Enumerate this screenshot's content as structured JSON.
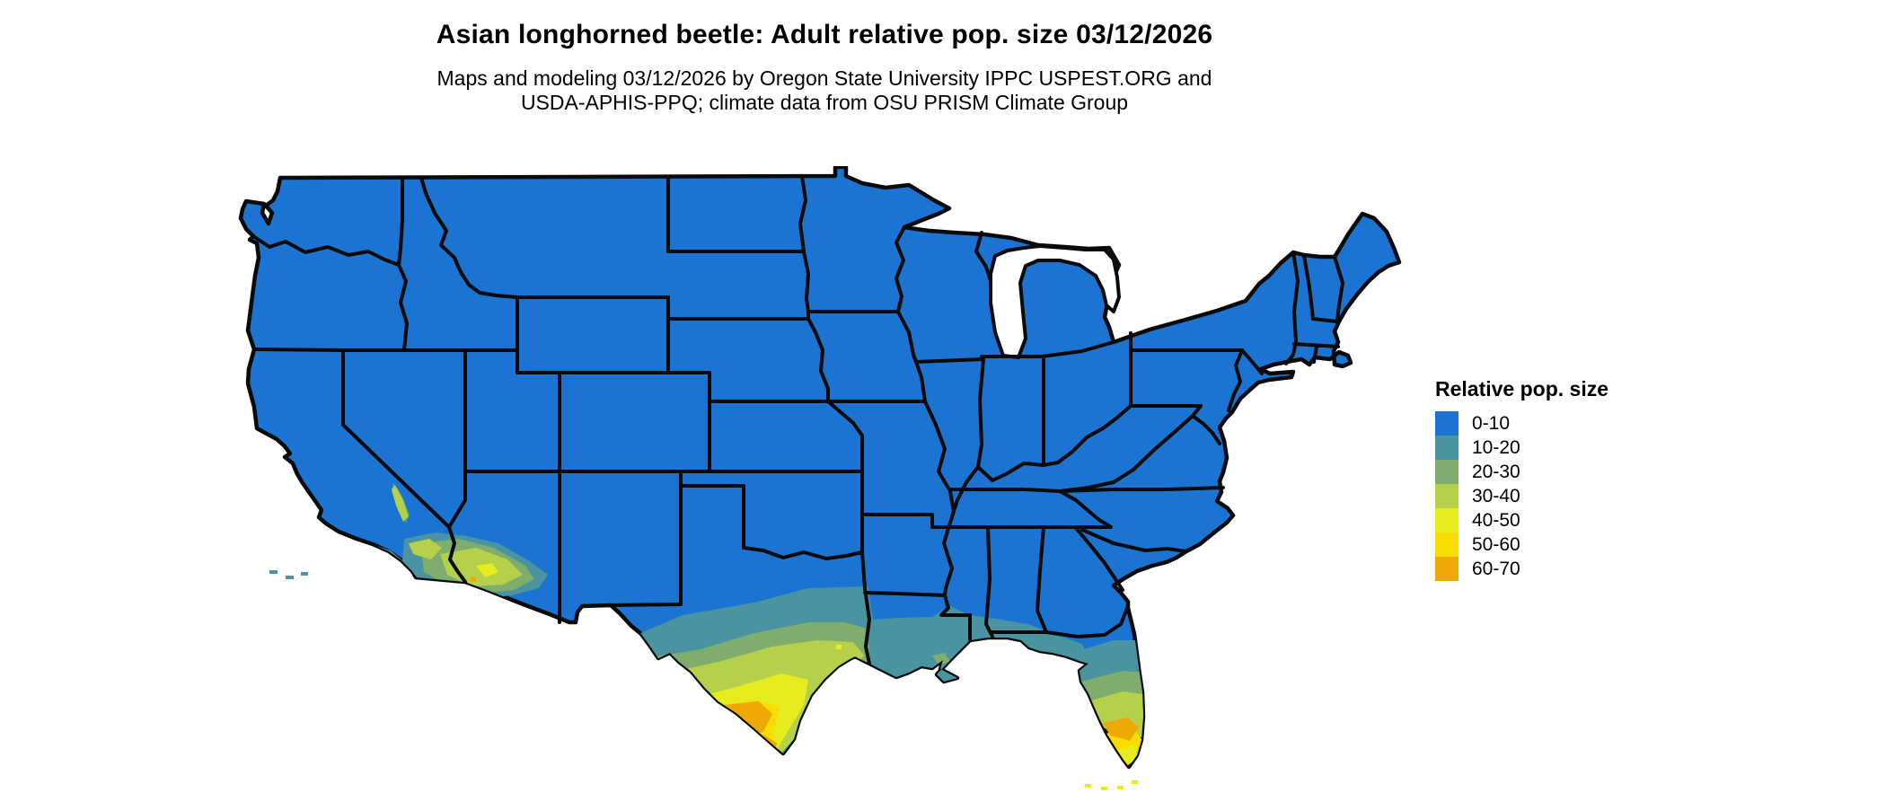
{
  "page": {
    "background": "#ffffff"
  },
  "header": {
    "title": "Asian longhorned beetle: Adult relative pop. size 03/12/2026",
    "subtitle_line1": "Maps and modeling 03/12/2026 by Oregon State University IPPC USPEST.ORG and",
    "subtitle_line2": "USDA-APHIS-PPQ; climate data from OSU PRISM Climate Group"
  },
  "legend": {
    "title": "Relative pop. size",
    "items": [
      {
        "label": "0-10",
        "color": "#1b74d1"
      },
      {
        "label": "10-20",
        "color": "#4a93a0"
      },
      {
        "label": "20-30",
        "color": "#7ead6e"
      },
      {
        "label": "30-40",
        "color": "#b5d04b"
      },
      {
        "label": "40-50",
        "color": "#e6ec1e"
      },
      {
        "label": "50-60",
        "color": "#f9dc00"
      },
      {
        "label": "60-70",
        "color": "#efa906"
      }
    ]
  },
  "map": {
    "base_color": "#1b74d1",
    "border_color": "#0a0a0a",
    "water_color": "#ffffff"
  }
}
